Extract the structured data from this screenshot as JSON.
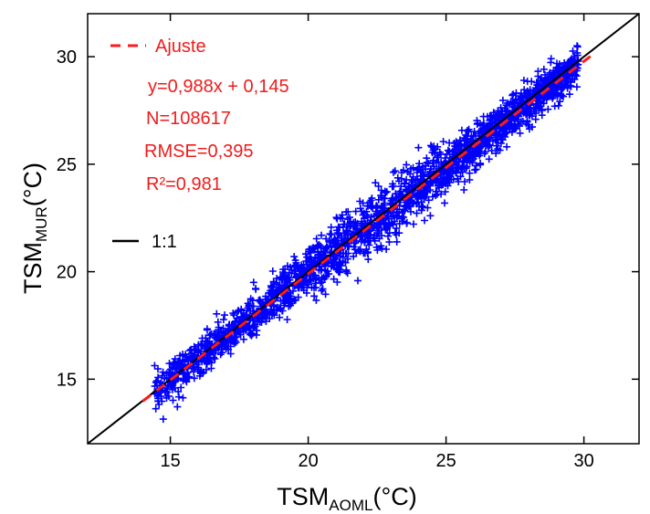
{
  "chart_data": {
    "type": "scatter",
    "xlabel": {
      "main": "TSM",
      "sub": "AOML",
      "unit": "(°C)"
    },
    "ylabel": {
      "main": "TSM",
      "sub": "MUR",
      "unit": "(°C)"
    },
    "xlim": [
      12,
      32
    ],
    "ylim": [
      12,
      32
    ],
    "xticks": [
      15,
      20,
      25,
      30
    ],
    "yticks": [
      15,
      20,
      25,
      30
    ],
    "grid": false,
    "legend_position": "top-left",
    "series": [
      {
        "name": "",
        "marker": "+",
        "color": "#0000ff",
        "description_range_x": [
          14,
          29.8
        ],
        "fit_slope": 0.988,
        "fit_intercept": 0.145
      },
      {
        "name": "Ajuste",
        "type": "line",
        "style": "dashed",
        "color": "#ff1a1a",
        "x": [
          14,
          30.3
        ],
        "slope": 0.988,
        "intercept": 0.145
      },
      {
        "name": "1:1",
        "type": "line",
        "style": "solid",
        "color": "#000000",
        "x": [
          12,
          32
        ],
        "slope": 1,
        "intercept": 0
      }
    ],
    "annotations": [
      "y=0,988x + 0,145",
      "N=108617",
      "RMSE=0,395",
      "R²=0,981"
    ],
    "stats": {
      "N": 108617,
      "RMSE": 0.395,
      "R2": 0.981,
      "slope": 0.988,
      "intercept": 0.145
    }
  }
}
